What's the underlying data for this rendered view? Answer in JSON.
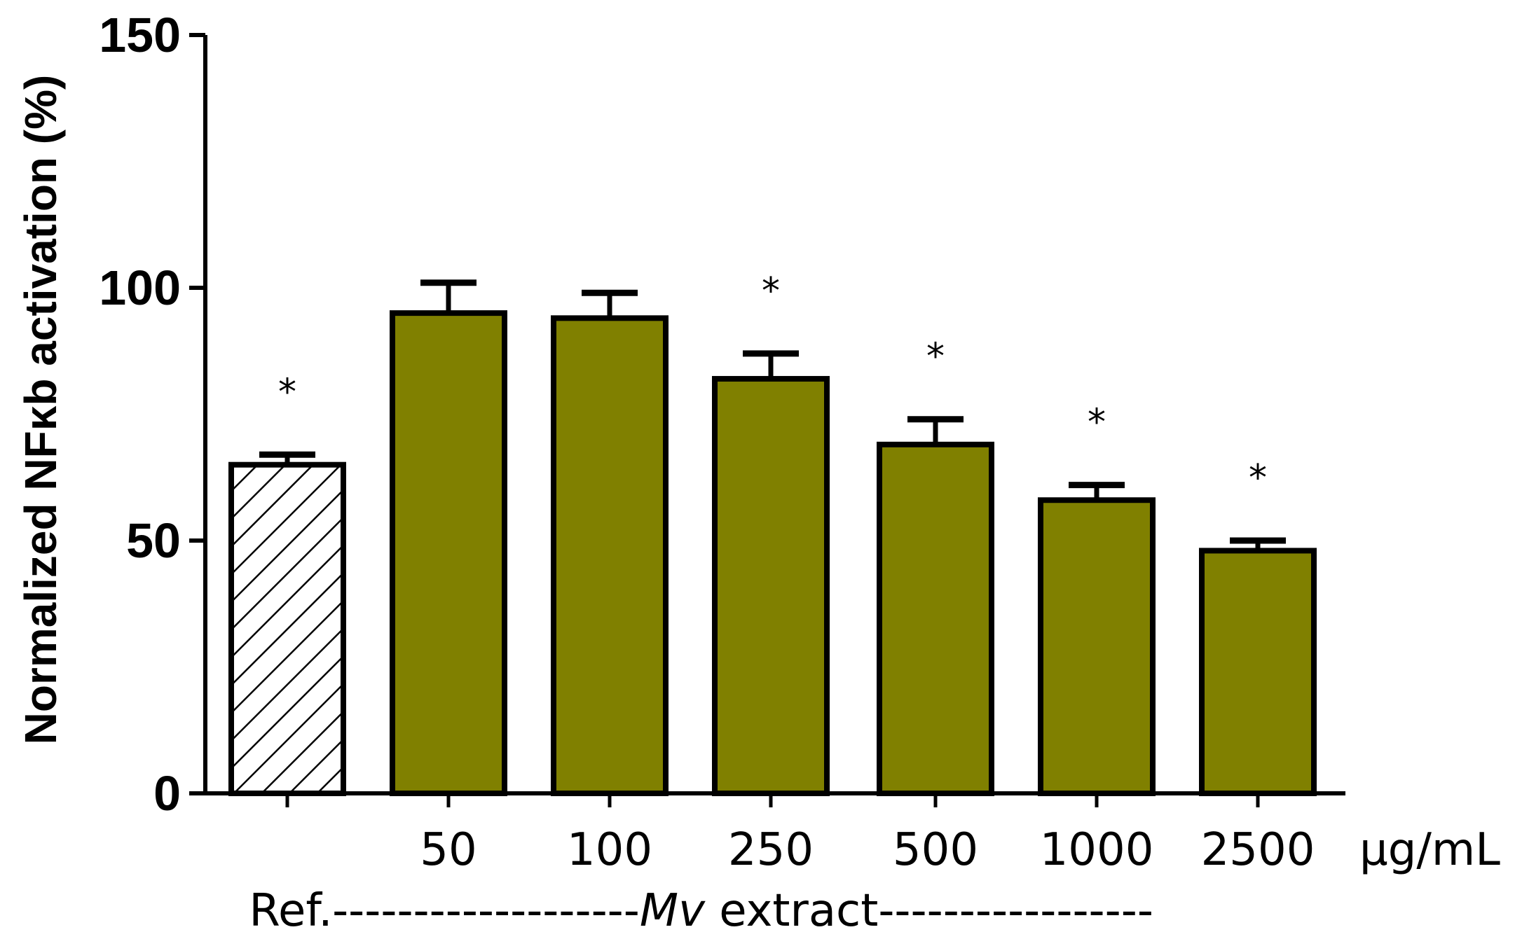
{
  "chart_data": {
    "type": "bar",
    "ylabel": "Normalized NFκb activation (%)",
    "ylim": [
      0,
      150
    ],
    "yticks": [
      0,
      50,
      100,
      150
    ],
    "x_unit_label": "μg/mL",
    "categories": [
      "",
      "50",
      "100",
      "250",
      "500",
      "1000",
      "2500"
    ],
    "values": [
      65,
      95,
      94,
      82,
      69,
      58,
      48
    ],
    "errors": [
      2,
      6,
      5,
      5,
      5,
      3,
      2
    ],
    "significance": [
      "*",
      "",
      "",
      "*",
      "*",
      "*",
      "*"
    ],
    "group_labels": {
      "reference": "Ref.",
      "extract_italic": "Mv",
      "extract_rest": " extract",
      "dashes_left": "-------------------",
      "dashes_right": "-----------------"
    },
    "colors": {
      "reference_fill": "hatched",
      "bar_fill": "#808000",
      "outline": "#000000"
    },
    "grid": false
  }
}
